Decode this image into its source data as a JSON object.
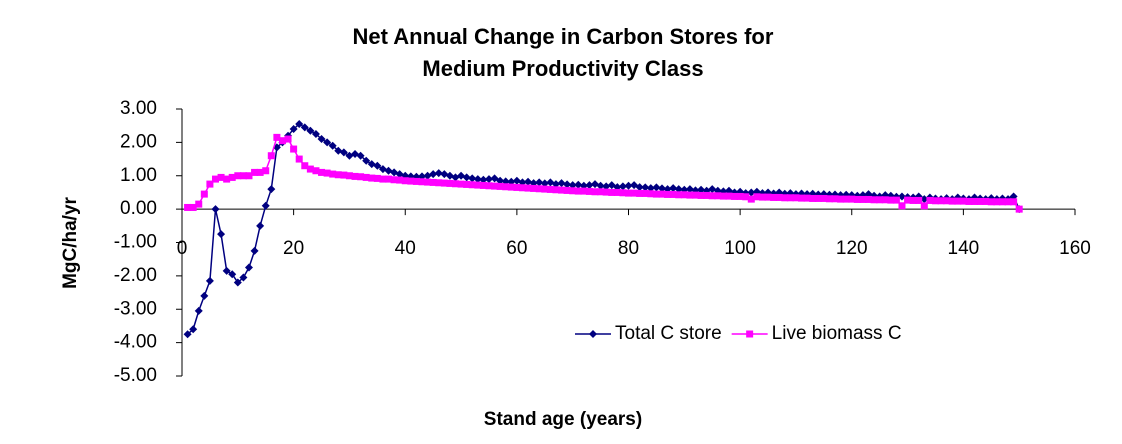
{
  "chart_data": {
    "type": "line",
    "title": [
      "Net Annual Change in Carbon Stores for",
      "Medium Productivity Class"
    ],
    "x_label": "Stand age (years)",
    "y_label": "MgC/ha/yr",
    "xlim": [
      0,
      160
    ],
    "xticks": [
      0,
      20,
      40,
      60,
      80,
      100,
      120,
      140,
      160
    ],
    "ylim": [
      -5,
      3
    ],
    "yticks": [
      {
        "value": -5,
        "label": "-5.00"
      },
      {
        "value": -4,
        "label": "-4.00"
      },
      {
        "value": -3,
        "label": "-3.00"
      },
      {
        "value": -2,
        "label": "-2.00"
      },
      {
        "value": -1,
        "label": "-1.00"
      },
      {
        "value": 0,
        "label": "0.00"
      },
      {
        "value": 1,
        "label": "1.00"
      },
      {
        "value": 2,
        "label": "2.00"
      },
      {
        "value": 3,
        "label": "3.00"
      }
    ],
    "legend": "bottom-right",
    "x": [
      1,
      2,
      3,
      4,
      5,
      6,
      7,
      8,
      9,
      10,
      11,
      12,
      13,
      14,
      15,
      16,
      17,
      18,
      19,
      20,
      21,
      22,
      23,
      24,
      25,
      26,
      27,
      28,
      29,
      30,
      31,
      32,
      33,
      34,
      35,
      36,
      37,
      38,
      39,
      40,
      41,
      42,
      43,
      44,
      45,
      46,
      47,
      48,
      49,
      50,
      51,
      52,
      53,
      54,
      55,
      56,
      57,
      58,
      59,
      60,
      61,
      62,
      63,
      64,
      65,
      66,
      67,
      68,
      69,
      70,
      71,
      72,
      73,
      74,
      75,
      76,
      77,
      78,
      79,
      80,
      81,
      82,
      83,
      84,
      85,
      86,
      87,
      88,
      89,
      90,
      91,
      92,
      93,
      94,
      95,
      96,
      97,
      98,
      99,
      100,
      101,
      102,
      103,
      104,
      105,
      106,
      107,
      108,
      109,
      110,
      111,
      112,
      113,
      114,
      115,
      116,
      117,
      118,
      119,
      120,
      121,
      122,
      123,
      124,
      125,
      126,
      127,
      128,
      129,
      130,
      131,
      132,
      133,
      134,
      135,
      136,
      137,
      138,
      139,
      140,
      141,
      142,
      143,
      144,
      145,
      146,
      147,
      148,
      149,
      150
    ],
    "series": [
      {
        "name": "Total C store",
        "color": "#000080",
        "marker": "diamond",
        "values": [
          -3.75,
          -3.6,
          -3.05,
          -2.6,
          -2.15,
          0.0,
          -0.75,
          -1.85,
          -1.95,
          -2.2,
          -2.05,
          -1.75,
          -1.25,
          -0.5,
          0.1,
          0.6,
          1.85,
          2.0,
          2.2,
          2.4,
          2.55,
          2.45,
          2.35,
          2.25,
          2.1,
          2.0,
          1.9,
          1.75,
          1.7,
          1.6,
          1.65,
          1.6,
          1.45,
          1.35,
          1.3,
          1.2,
          1.15,
          1.1,
          1.05,
          1.0,
          0.98,
          0.97,
          0.98,
          1.0,
          1.05,
          1.08,
          1.05,
          1.0,
          0.95,
          1.0,
          0.95,
          0.92,
          0.9,
          0.88,
          0.9,
          0.92,
          0.85,
          0.83,
          0.82,
          0.85,
          0.8,
          0.82,
          0.78,
          0.8,
          0.77,
          0.8,
          0.75,
          0.78,
          0.74,
          0.72,
          0.73,
          0.7,
          0.72,
          0.75,
          0.7,
          0.68,
          0.72,
          0.66,
          0.68,
          0.7,
          0.72,
          0.66,
          0.65,
          0.63,
          0.65,
          0.62,
          0.6,
          0.63,
          0.6,
          0.58,
          0.6,
          0.56,
          0.58,
          0.55,
          0.6,
          0.55,
          0.53,
          0.55,
          0.5,
          0.52,
          0.48,
          0.5,
          0.52,
          0.48,
          0.5,
          0.47,
          0.5,
          0.46,
          0.48,
          0.45,
          0.47,
          0.45,
          0.46,
          0.44,
          0.45,
          0.43,
          0.44,
          0.42,
          0.43,
          0.42,
          0.4,
          0.42,
          0.45,
          0.4,
          0.38,
          0.42,
          0.4,
          0.37,
          0.38,
          0.36,
          0.35,
          0.38,
          0.3,
          0.35,
          0.32,
          0.3,
          0.33,
          0.3,
          0.35,
          0.32,
          0.3,
          0.35,
          0.32,
          0.3,
          0.33,
          0.3,
          0.32,
          0.3,
          0.38,
          0.0
        ]
      },
      {
        "name": "Live biomass C",
        "color": "#ff00ff",
        "marker": "square",
        "values": [
          0.05,
          0.05,
          0.15,
          0.45,
          0.75,
          0.9,
          0.95,
          0.9,
          0.95,
          1.0,
          1.0,
          1.0,
          1.1,
          1.1,
          1.15,
          1.6,
          2.15,
          2.05,
          2.1,
          1.8,
          1.5,
          1.3,
          1.2,
          1.15,
          1.1,
          1.08,
          1.05,
          1.03,
          1.02,
          1.0,
          0.98,
          0.97,
          0.95,
          0.93,
          0.92,
          0.9,
          0.9,
          0.88,
          0.87,
          0.85,
          0.84,
          0.83,
          0.82,
          0.81,
          0.8,
          0.79,
          0.78,
          0.77,
          0.76,
          0.75,
          0.74,
          0.73,
          0.72,
          0.71,
          0.7,
          0.69,
          0.68,
          0.67,
          0.66,
          0.65,
          0.64,
          0.63,
          0.62,
          0.61,
          0.6,
          0.59,
          0.58,
          0.57,
          0.56,
          0.55,
          0.54,
          0.54,
          0.53,
          0.52,
          0.52,
          0.51,
          0.5,
          0.5,
          0.49,
          0.48,
          0.48,
          0.47,
          0.47,
          0.46,
          0.45,
          0.45,
          0.44,
          0.44,
          0.43,
          0.43,
          0.42,
          0.42,
          0.41,
          0.41,
          0.4,
          0.4,
          0.39,
          0.39,
          0.38,
          0.38,
          0.37,
          0.3,
          0.37,
          0.36,
          0.36,
          0.35,
          0.35,
          0.34,
          0.34,
          0.34,
          0.33,
          0.33,
          0.32,
          0.32,
          0.32,
          0.31,
          0.31,
          0.3,
          0.3,
          0.3,
          0.29,
          0.29,
          0.29,
          0.28,
          0.28,
          0.28,
          0.27,
          0.27,
          0.1,
          0.27,
          0.26,
          0.26,
          0.1,
          0.26,
          0.25,
          0.25,
          0.25,
          0.24,
          0.24,
          0.24,
          0.23,
          0.23,
          0.23,
          0.23,
          0.22,
          0.22,
          0.22,
          0.22,
          0.22,
          0.0
        ]
      }
    ]
  }
}
